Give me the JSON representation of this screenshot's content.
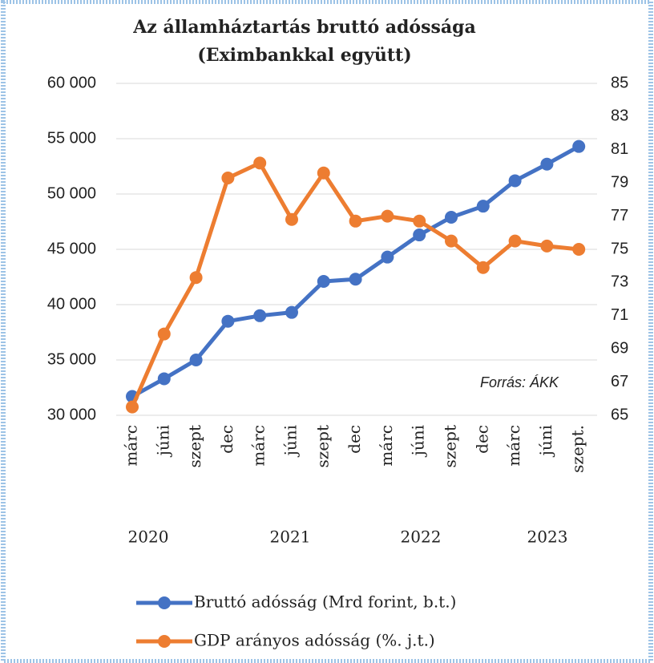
{
  "chart_data": {
    "type": "line",
    "title": [
      "Az államháztartás bruttó adóssága",
      "(Eximbankkal együtt)"
    ],
    "categories": [
      "márc",
      "júni",
      "szept",
      "dec",
      "márc",
      "júni",
      "szept",
      "dec",
      "márc",
      "júni",
      "szept",
      "dec",
      "márc",
      "júni",
      "szept."
    ],
    "years": [
      "2020",
      "2021",
      "2022",
      "2023"
    ],
    "annotation": "Forrás: ÁKK",
    "series": [
      {
        "name": "Bruttó adósság (Mrd forint, b.t.)",
        "color": "#4472c4",
        "values": [
          31700,
          33300,
          35000,
          38500,
          39000,
          39300,
          42100,
          42300,
          44300,
          46300,
          47900,
          48900,
          51200,
          52700,
          54300
        ]
      },
      {
        "name": "GDP arányos adósság (%. j.t.)",
        "color": "#ed7d31",
        "axis": "y2",
        "values": [
          65.5,
          69.9,
          73.3,
          79.3,
          80.2,
          76.8,
          79.6,
          76.7,
          77.0,
          76.7,
          75.5,
          73.9,
          75.5,
          75.2,
          75.0
        ]
      }
    ],
    "ylim": [
      30000,
      60000
    ],
    "yticks": [
      {
        "value": 30000,
        "label": "30 000"
      },
      {
        "value": 35000,
        "label": "35 000"
      },
      {
        "value": 40000,
        "label": "40 000"
      },
      {
        "value": 45000,
        "label": "45 000"
      },
      {
        "value": 50000,
        "label": "50 000"
      },
      {
        "value": 55000,
        "label": "55 000"
      },
      {
        "value": 60000,
        "label": "60 000"
      }
    ],
    "y2lim": [
      65,
      85
    ],
    "y2ticks": [
      65,
      67,
      69,
      71,
      73,
      75,
      77,
      79,
      81,
      83,
      85
    ],
    "grid": true
  }
}
